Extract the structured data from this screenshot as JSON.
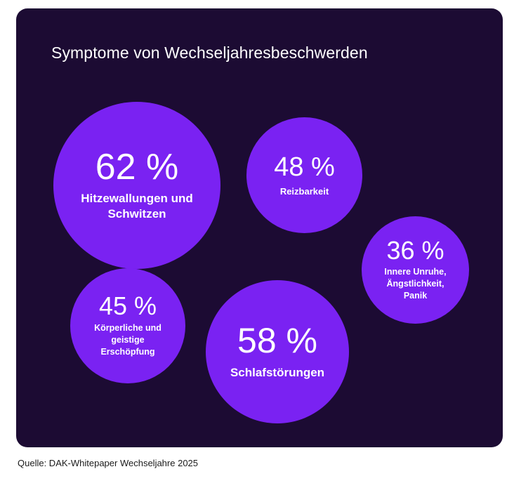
{
  "colors": {
    "panel": "#1c0b33",
    "bubble": "#7a22f2",
    "text": "#ffffff"
  },
  "chart_data": {
    "type": "bubble",
    "title": "Symptome von Wechseljahresbeschwerden",
    "unit": "%",
    "points": [
      {
        "value": 62,
        "display": "62 %",
        "label": "Hitzewallungen und Schwitzen"
      },
      {
        "value": 48,
        "display": "48 %",
        "label": "Reizbarkeit"
      },
      {
        "value": 36,
        "display": "36 %",
        "label": "Innere Unruhe, Ängstlichkeit, Panik"
      },
      {
        "value": 45,
        "display": "45 %",
        "label": "Körperliche und geistige Erschöpfung"
      },
      {
        "value": 58,
        "display": "58 %",
        "label": "Schlafstörungen"
      }
    ]
  },
  "source": "Quelle: DAK-Whitepaper Wechseljahre 2025"
}
